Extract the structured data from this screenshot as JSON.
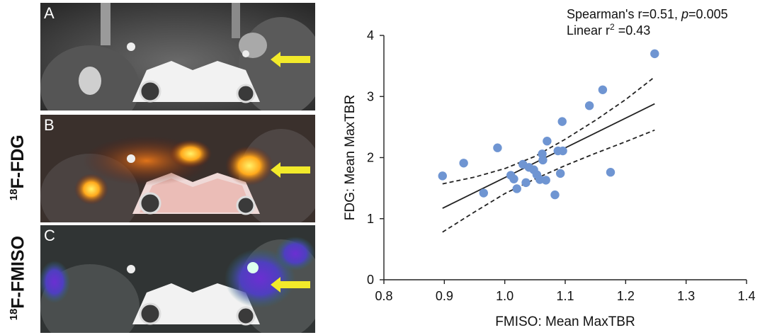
{
  "figure": {
    "labels": {
      "fdg": {
        "sup": "18",
        "text": "F-FDG"
      },
      "fmiso": {
        "sup": "18",
        "text": "F-FMISO"
      }
    },
    "panels": [
      {
        "letter": "A",
        "kind": "ct"
      },
      {
        "letter": "B",
        "kind": "fdg"
      },
      {
        "letter": "C",
        "kind": "fmiso"
      }
    ],
    "colors": {
      "arrow": "#f2ea2a",
      "fdg_hot": "#ffd21f",
      "fmiso": "#6a3cc8"
    }
  },
  "chart_data": {
    "type": "scatter",
    "xlabel": "FMISO: Mean MaxTBR",
    "ylabel": "FDG: Mean MaxTBR",
    "xlim": [
      0.8,
      1.4
    ],
    "ylim": [
      0,
      4
    ],
    "xticks": [
      0.8,
      0.9,
      1.0,
      1.1,
      1.2,
      1.3,
      1.4
    ],
    "xtick_labels": [
      "0.8",
      "0.9",
      "1.0",
      "1.1",
      "1.2",
      "1.3",
      "1.4"
    ],
    "yticks": [
      0,
      1,
      2,
      3,
      4
    ],
    "ytick_labels": [
      "0",
      "1",
      "2",
      "3",
      "4"
    ],
    "annotation": {
      "line1": "Spearman's r=0.51, ",
      "p_symbol": "p",
      "p_value": "=0.005",
      "line2_prefix": "Linear r",
      "line2_sup": "2",
      "line2_suffix": " =0.43"
    },
    "marker_color": "#6f95d2",
    "points": [
      {
        "x": 0.897,
        "y": 1.7
      },
      {
        "x": 0.932,
        "y": 1.91
      },
      {
        "x": 0.965,
        "y": 1.42
      },
      {
        "x": 0.988,
        "y": 2.16
      },
      {
        "x": 1.01,
        "y": 1.71
      },
      {
        "x": 1.015,
        "y": 1.65
      },
      {
        "x": 1.02,
        "y": 1.49
      },
      {
        "x": 1.03,
        "y": 1.89
      },
      {
        "x": 1.035,
        "y": 1.59
      },
      {
        "x": 1.04,
        "y": 1.84
      },
      {
        "x": 1.048,
        "y": 1.8
      },
      {
        "x": 1.053,
        "y": 1.72
      },
      {
        "x": 1.058,
        "y": 1.64
      },
      {
        "x": 1.062,
        "y": 2.06
      },
      {
        "x": 1.063,
        "y": 1.96
      },
      {
        "x": 1.068,
        "y": 1.63
      },
      {
        "x": 1.07,
        "y": 2.27
      },
      {
        "x": 1.083,
        "y": 1.39
      },
      {
        "x": 1.088,
        "y": 2.11
      },
      {
        "x": 1.092,
        "y": 1.74
      },
      {
        "x": 1.095,
        "y": 2.59
      },
      {
        "x": 1.096,
        "y": 2.11
      },
      {
        "x": 1.14,
        "y": 2.85
      },
      {
        "x": 1.162,
        "y": 3.11
      },
      {
        "x": 1.175,
        "y": 1.76
      },
      {
        "x": 1.248,
        "y": 3.7
      }
    ],
    "fit_line": {
      "x": [
        0.897,
        1.248
      ],
      "y": [
        1.17,
        2.88
      ]
    },
    "ci_upper": {
      "x": [
        0.897,
        0.95,
        1.0,
        1.05,
        1.1,
        1.15,
        1.2,
        1.248
      ],
      "y": [
        1.57,
        1.68,
        1.82,
        2.02,
        2.3,
        2.61,
        2.95,
        3.32
      ]
    },
    "ci_lower": {
      "x": [
        0.897,
        0.95,
        1.0,
        1.05,
        1.1,
        1.15,
        1.2,
        1.248
      ],
      "y": [
        0.78,
        1.11,
        1.41,
        1.65,
        1.87,
        2.07,
        2.26,
        2.45
      ]
    }
  }
}
